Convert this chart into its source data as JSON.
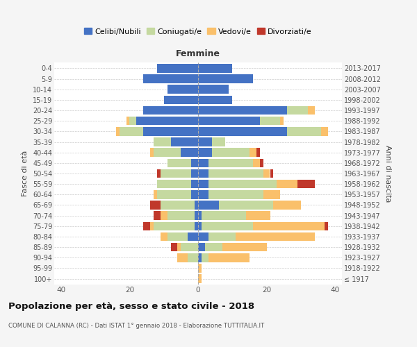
{
  "age_groups": [
    "100+",
    "95-99",
    "90-94",
    "85-89",
    "80-84",
    "75-79",
    "70-74",
    "65-69",
    "60-64",
    "55-59",
    "50-54",
    "45-49",
    "40-44",
    "35-39",
    "30-34",
    "25-29",
    "20-24",
    "15-19",
    "10-14",
    "5-9",
    "0-4"
  ],
  "birth_years": [
    "≤ 1917",
    "1918-1922",
    "1923-1927",
    "1928-1932",
    "1933-1937",
    "1938-1942",
    "1943-1947",
    "1948-1952",
    "1953-1957",
    "1958-1962",
    "1963-1967",
    "1968-1972",
    "1973-1977",
    "1978-1982",
    "1983-1987",
    "1988-1992",
    "1993-1997",
    "1998-2002",
    "2003-2007",
    "2008-2012",
    "2013-2017"
  ],
  "male_celibe": [
    0,
    0,
    0,
    0,
    3,
    1,
    1,
    1,
    2,
    2,
    2,
    2,
    5,
    8,
    16,
    18,
    16,
    10,
    9,
    16,
    12
  ],
  "male_coniugato": [
    0,
    0,
    3,
    5,
    6,
    12,
    8,
    10,
    10,
    10,
    9,
    7,
    8,
    5,
    7,
    2,
    0,
    0,
    0,
    0,
    0
  ],
  "male_vedovo": [
    0,
    0,
    3,
    1,
    2,
    1,
    2,
    0,
    1,
    0,
    0,
    0,
    1,
    0,
    1,
    1,
    0,
    0,
    0,
    0,
    0
  ],
  "male_divorziato": [
    0,
    0,
    0,
    2,
    0,
    2,
    2,
    3,
    0,
    0,
    1,
    0,
    0,
    0,
    0,
    0,
    0,
    0,
    0,
    0,
    0
  ],
  "female_celibe": [
    0,
    0,
    1,
    2,
    3,
    1,
    1,
    6,
    3,
    3,
    3,
    3,
    4,
    4,
    26,
    18,
    26,
    10,
    9,
    16,
    10
  ],
  "female_coniugato": [
    0,
    0,
    2,
    5,
    8,
    15,
    13,
    16,
    16,
    20,
    16,
    13,
    11,
    4,
    10,
    6,
    6,
    0,
    0,
    0,
    0
  ],
  "female_vedovo": [
    1,
    1,
    12,
    13,
    23,
    21,
    7,
    8,
    5,
    6,
    2,
    2,
    2,
    0,
    2,
    1,
    2,
    0,
    0,
    0,
    0
  ],
  "female_divorziato": [
    0,
    0,
    0,
    0,
    0,
    1,
    0,
    0,
    0,
    5,
    1,
    1,
    1,
    0,
    0,
    0,
    0,
    0,
    0,
    0,
    0
  ],
  "colors": {
    "celibe": "#4472c4",
    "coniugato": "#c5d9a0",
    "vedovo": "#fac06b",
    "divorziato": "#c0382b"
  },
  "title": "Popolazione per età, sesso e stato civile - 2018",
  "subtitle": "COMUNE DI CALANNA (RC) - Dati ISTAT 1° gennaio 2018 - Elaborazione TUTTITALIA.IT",
  "ylabel_left": "Fasce di età",
  "ylabel_right": "Anni di nascita",
  "xlabel_right": "Femmine",
  "xlim": 42,
  "bg_color": "#f5f5f5",
  "plot_bg_color": "#ffffff"
}
